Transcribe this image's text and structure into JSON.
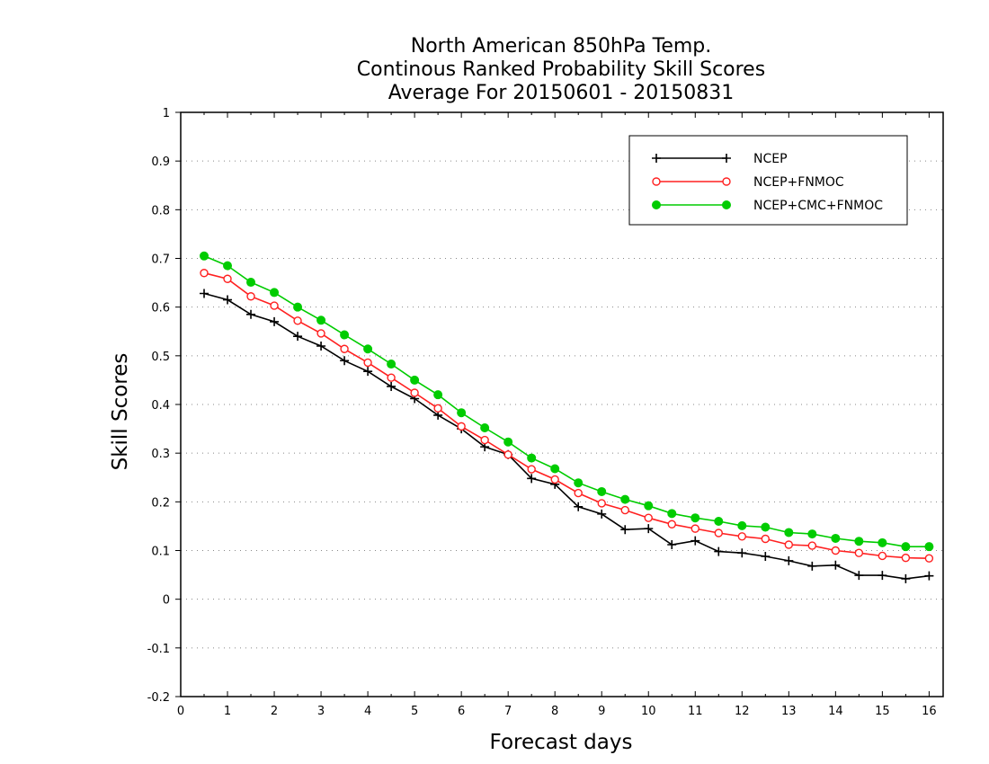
{
  "chart_data": {
    "type": "line",
    "title_lines": [
      "North American 850hPa Temp.",
      "Continous Ranked Probability Skill Scores",
      "Average For 20150601 - 20150831"
    ],
    "xlabel": "Forecast days",
    "ylabel": "Skill Scores",
    "xlim": [
      0,
      16.3
    ],
    "ylim": [
      -0.2,
      1.0
    ],
    "xticks": [
      0,
      1,
      2,
      3,
      4,
      5,
      6,
      7,
      8,
      9,
      10,
      11,
      12,
      13,
      14,
      15,
      16
    ],
    "yticks": [
      -0.2,
      -0.1,
      0,
      0.1,
      0.2,
      0.3,
      0.4,
      0.5,
      0.6,
      0.7,
      0.8,
      0.9,
      1
    ],
    "ytick_labels": [
      "-0.2",
      "-0.1",
      "0",
      "0.1",
      "0.2",
      "0.3",
      "0.4",
      "0.5",
      "0.6",
      "0.7",
      "0.8",
      "0.9",
      "1"
    ],
    "grid": "horizontal dotted",
    "legend_position": "top-right",
    "x": [
      0.5,
      1,
      1.5,
      2,
      2.5,
      3,
      3.5,
      4,
      4.5,
      5,
      5.5,
      6,
      6.5,
      7,
      7.5,
      8,
      8.5,
      9,
      9.5,
      10,
      10.5,
      11,
      11.5,
      12,
      12.5,
      13,
      13.5,
      14,
      14.5,
      15,
      15.5,
      16
    ],
    "series": [
      {
        "name": "NCEP",
        "color": "#000000",
        "marker": "plus",
        "values": [
          0.628,
          0.615,
          0.585,
          0.57,
          0.54,
          0.52,
          0.49,
          0.468,
          0.437,
          0.412,
          0.378,
          0.35,
          0.313,
          0.297,
          0.248,
          0.236,
          0.19,
          0.175,
          0.143,
          0.145,
          0.112,
          0.12,
          0.098,
          0.095,
          0.088,
          0.079,
          0.068,
          0.07,
          0.049,
          0.049,
          0.042,
          0.048
        ]
      },
      {
        "name": "NCEP+FNMOC",
        "color": "#ff2020",
        "marker": "open-circle",
        "values": [
          0.67,
          0.658,
          0.622,
          0.603,
          0.572,
          0.546,
          0.514,
          0.486,
          0.455,
          0.424,
          0.392,
          0.355,
          0.327,
          0.297,
          0.267,
          0.246,
          0.218,
          0.197,
          0.183,
          0.167,
          0.154,
          0.145,
          0.136,
          0.129,
          0.124,
          0.112,
          0.11,
          0.1,
          0.095,
          0.089,
          0.085,
          0.084
        ]
      },
      {
        "name": "NCEP+CMC+FNMOC",
        "color": "#00cc00",
        "marker": "filled-circle",
        "values": [
          0.705,
          0.685,
          0.651,
          0.63,
          0.6,
          0.573,
          0.543,
          0.514,
          0.483,
          0.45,
          0.42,
          0.383,
          0.352,
          0.323,
          0.29,
          0.268,
          0.239,
          0.221,
          0.205,
          0.192,
          0.176,
          0.167,
          0.16,
          0.151,
          0.148,
          0.137,
          0.134,
          0.125,
          0.119,
          0.116,
          0.108,
          0.108
        ]
      }
    ]
  }
}
